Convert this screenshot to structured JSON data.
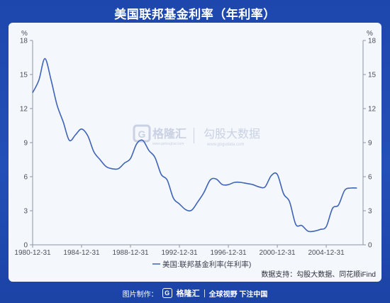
{
  "title": "美国联邦基金利率（年利率）",
  "footer": {
    "prefix": "图片制作：",
    "logo_glyph": "G",
    "brand": "格隆汇",
    "slogan": "全球视野 下注中国"
  },
  "watermark": {
    "logo_glyph": "G",
    "brand_cn": "格隆汇",
    "brand_url": "www.gelonghui.com",
    "partner_cn": "勾股大数据",
    "partner_url": "www.gogudata.com"
  },
  "source_note": "数据支持：勾股大数据、同花顺iFind",
  "colors": {
    "line": "#3e63b7",
    "background": "#1f45a8",
    "panel": "#f4f7fc",
    "axis": "#4a4f5a"
  },
  "chart_data": {
    "type": "line",
    "title": "美国联邦基金利率（年利率）",
    "y_unit_left": "%",
    "y_unit_right": "%",
    "ylim": [
      0,
      18
    ],
    "yticks": [
      0,
      3,
      6,
      9,
      12,
      15,
      18
    ],
    "xlim": [
      1980.99,
      2008.0
    ],
    "xtick_labels": [
      "1980-12-31",
      "1984-12-31",
      "1988-12-31",
      "1992-12-31",
      "1996-12-31",
      "2000-12-31",
      "2004-12-31"
    ],
    "xtick_values": [
      1980.99,
      1984.99,
      1988.99,
      1992.99,
      1996.99,
      2000.99,
      2004.99
    ],
    "grid": false,
    "legend_position": "bottom-center",
    "series": [
      {
        "name": "美国:联邦基金利率(年利率)",
        "x": [
          1980.99,
          1981.5,
          1981.99,
          1982.5,
          1982.99,
          1983.5,
          1983.99,
          1984.5,
          1984.99,
          1985.5,
          1985.99,
          1986.5,
          1986.99,
          1987.5,
          1987.99,
          1988.5,
          1988.99,
          1989.5,
          1989.99,
          1990.5,
          1990.99,
          1991.5,
          1991.99,
          1992.5,
          1992.99,
          1993.5,
          1993.99,
          1994.5,
          1994.99,
          1995.5,
          1995.99,
          1996.5,
          1996.99,
          1997.5,
          1997.99,
          1998.5,
          1998.99,
          1999.5,
          1999.99,
          2000.5,
          2000.99,
          2001.5,
          2001.99,
          2002.5,
          2002.99,
          2003.5,
          2003.99,
          2004.5,
          2004.99,
          2005.5,
          2005.99,
          2006.5,
          2006.99,
          2007.5
        ],
        "values": [
          13.4,
          14.5,
          16.4,
          14.5,
          12.3,
          10.8,
          9.2,
          9.7,
          10.2,
          9.6,
          8.2,
          7.5,
          6.9,
          6.7,
          6.7,
          7.2,
          7.6,
          8.9,
          9.2,
          8.3,
          7.7,
          6.2,
          5.7,
          4.1,
          3.6,
          3.1,
          3.05,
          3.8,
          4.6,
          5.7,
          5.8,
          5.3,
          5.3,
          5.5,
          5.5,
          5.4,
          5.3,
          5.1,
          5.1,
          6.1,
          6.2,
          4.5,
          3.8,
          1.8,
          1.7,
          1.2,
          1.2,
          1.35,
          1.6,
          3.2,
          3.5,
          4.8,
          5.0,
          5.0
        ]
      }
    ]
  }
}
